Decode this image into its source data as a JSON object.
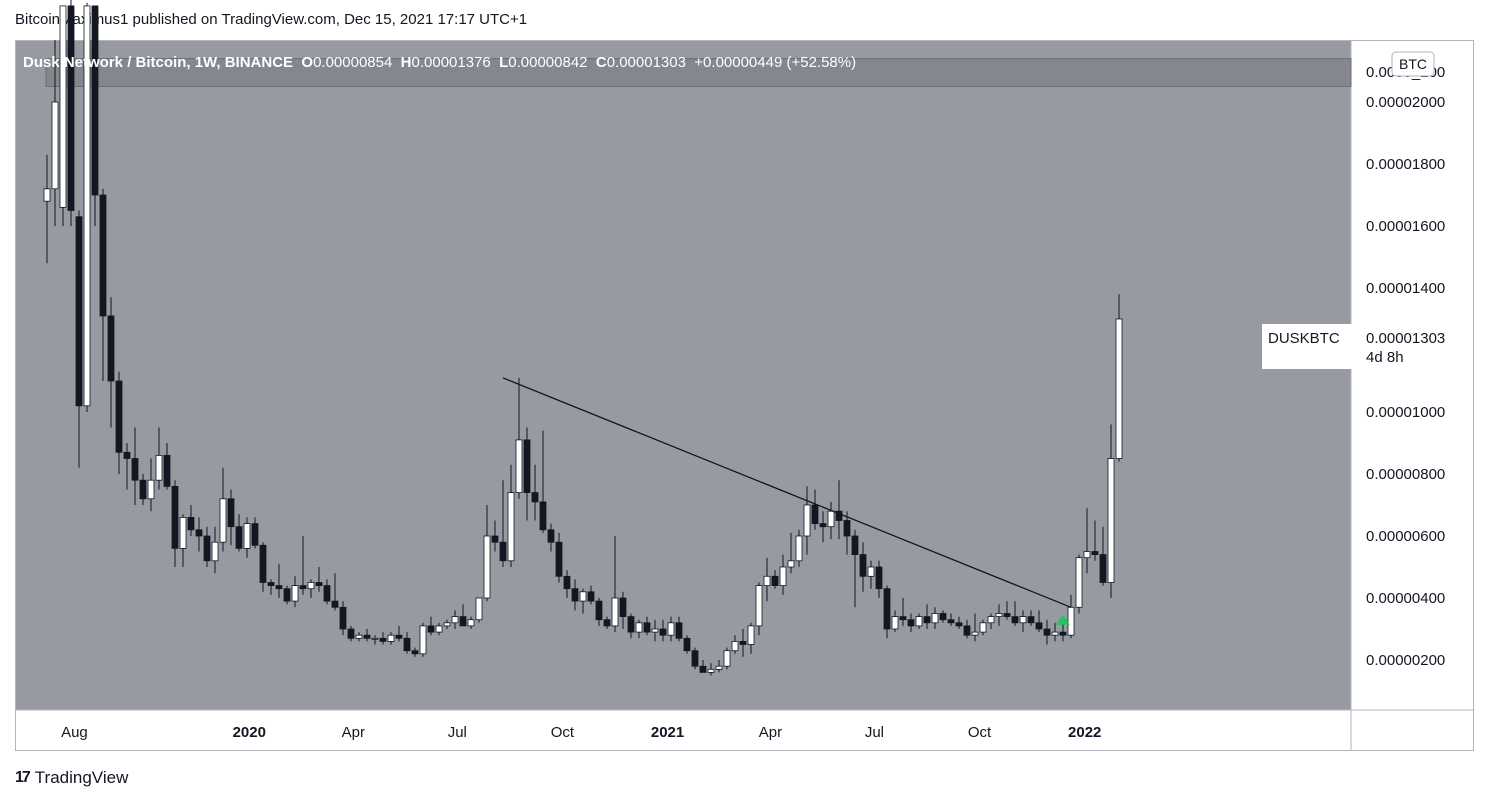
{
  "header": {
    "published": "BitcoinMaximus1 published on TradingView.com, Dec 15, 2021 17:17 UTC+1"
  },
  "legend": {
    "symbol": "Dusk Network / Bitcoin, 1W, BINANCE",
    "o_label": "O",
    "o": "0.00000854",
    "h_label": "H",
    "h": "0.00001376",
    "l_label": "L",
    "l": "0.00000842",
    "c_label": "C",
    "c": "0.00001303",
    "change": "+0.00000449 (+52.58%)"
  },
  "price_axis": {
    "currency": "BTC",
    "ticks": [
      "0.00002000",
      "0.00001800",
      "0.00001600",
      "0.00001400",
      "0.00001000",
      "0.00000800",
      "0.00000600",
      "0.00000400",
      "0.00000200"
    ],
    "top_partial": "0.0000_200",
    "label_symbol": "DUSKBTC",
    "label_price": "0.00001303",
    "label_countdown": "4d 8h"
  },
  "time_axis": {
    "ticks": [
      "Aug",
      "2020",
      "Apr",
      "Jul",
      "Oct",
      "2021",
      "Apr",
      "Jul",
      "Oct",
      "2022"
    ]
  },
  "footer": {
    "brand": "TradingView",
    "logo_mark": "17"
  },
  "colors": {
    "plot_bg": "#979aa1",
    "up": "#ffffff",
    "down": "#131722",
    "arrow": "#22c55e",
    "zone": "#7d8087"
  },
  "chart_data": {
    "type": "candlestick",
    "interval": "1W",
    "ylim": [
      1.1e-06,
      2.24e-05
    ],
    "resistance_zone": [
      2.05e-05,
      2.14e-05
    ],
    "trendline": {
      "from": [
        "2020-08-10",
        1.11e-05
      ],
      "to": [
        "2021-12-20",
        3.7e-06
      ]
    },
    "signal_arrow": {
      "date": "2021-12-13",
      "price": 3.3e-06,
      "direction": "up"
    },
    "candles_start": "2019-07-08",
    "candles": [
      [
        1.68e-05,
        1.83e-05,
        1.48e-05,
        1.72e-05
      ],
      [
        1.72e-05,
        2.2e-05,
        1.6e-05,
        2e-05
      ],
      [
        1.66e-05,
        2.3e-05,
        1.6e-05,
        2.31e-05
      ],
      [
        2.31e-05,
        2.45e-05,
        1.6e-05,
        1.65e-05
      ],
      [
        1.63e-05,
        1.65e-05,
        8.2e-06,
        1.02e-05
      ],
      [
        1.02e-05,
        2.32e-05,
        1e-05,
        2.31e-05
      ],
      [
        2.31e-05,
        2.31e-05,
        1.6e-05,
        1.7e-05
      ],
      [
        1.7e-05,
        1.72e-05,
        1.1e-05,
        1.31e-05
      ],
      [
        1.31e-05,
        1.37e-05,
        9.5e-06,
        1.1e-05
      ],
      [
        1.1e-05,
        1.13e-05,
        8e-06,
        8.7e-06
      ],
      [
        8.7e-06,
        9e-06,
        7.5e-06,
        8.5e-06
      ],
      [
        8.5e-06,
        9.5e-06,
        7e-06,
        7.8e-06
      ],
      [
        7.8e-06,
        8e-06,
        7e-06,
        7.2e-06
      ],
      [
        7.2e-06,
        8.5e-06,
        6.8e-06,
        7.8e-06
      ],
      [
        7.8e-06,
        9.5e-06,
        7.5e-06,
        8.6e-06
      ],
      [
        8.6e-06,
        9e-06,
        7.5e-06,
        7.6e-06
      ],
      [
        7.6e-06,
        7.8e-06,
        5e-06,
        5.6e-06
      ],
      [
        5.6e-06,
        6.7e-06,
        5e-06,
        6.6e-06
      ],
      [
        6.6e-06,
        7e-06,
        6e-06,
        6.2e-06
      ],
      [
        6.2e-06,
        6.6e-06,
        5.5e-06,
        6e-06
      ],
      [
        6e-06,
        6.3e-06,
        5e-06,
        5.2e-06
      ],
      [
        5.2e-06,
        6.3e-06,
        4.8e-06,
        5.8e-06
      ],
      [
        5.8e-06,
        8.2e-06,
        5.5e-06,
        7.2e-06
      ],
      [
        7.2e-06,
        7.5e-06,
        5.7e-06,
        6.3e-06
      ],
      [
        6.3e-06,
        6.7e-06,
        5.5e-06,
        5.6e-06
      ],
      [
        5.6e-06,
        6.6e-06,
        5.3e-06,
        6.4e-06
      ],
      [
        6.4e-06,
        6.6e-06,
        5.6e-06,
        5.7e-06
      ],
      [
        5.7e-06,
        5.8e-06,
        4.2e-06,
        4.5e-06
      ],
      [
        4.5e-06,
        4.6e-06,
        4.1e-06,
        4.4e-06
      ],
      [
        4.4e-06,
        5.1e-06,
        4e-06,
        4.3e-06
      ],
      [
        4.3e-06,
        4.4e-06,
        3.8e-06,
        3.9e-06
      ],
      [
        3.9e-06,
        4.7e-06,
        3.7e-06,
        4.4e-06
      ],
      [
        4.4e-06,
        6e-06,
        4.1e-06,
        4.3e-06
      ],
      [
        4.3e-06,
        4.6e-06,
        4e-06,
        4.5e-06
      ],
      [
        4.5e-06,
        5e-06,
        4.2e-06,
        4.4e-06
      ],
      [
        4.4e-06,
        4.6e-06,
        3.8e-06,
        3.9e-06
      ],
      [
        3.9e-06,
        4.8e-06,
        3.6e-06,
        3.7e-06
      ],
      [
        3.7e-06,
        3.9e-06,
        2.8e-06,
        3e-06
      ],
      [
        3e-06,
        3.1e-06,
        2.6e-06,
        2.7e-06
      ],
      [
        2.7e-06,
        2.9e-06,
        2.6e-06,
        2.8e-06
      ],
      [
        2.8e-06,
        3e-06,
        2.6e-06,
        2.7e-06
      ],
      [
        2.7e-06,
        2.8e-06,
        2.5e-06,
        2.7e-06
      ],
      [
        2.7e-06,
        2.9e-06,
        2.5e-06,
        2.6e-06
      ],
      [
        2.6e-06,
        2.9e-06,
        2.5e-06,
        2.8e-06
      ],
      [
        2.8e-06,
        3.1e-06,
        2.6e-06,
        2.7e-06
      ],
      [
        2.7e-06,
        2.9e-06,
        2.2e-06,
        2.3e-06
      ],
      [
        2.3e-06,
        2.4e-06,
        2.1e-06,
        2.2e-06
      ],
      [
        2.2e-06,
        3.2e-06,
        2.1e-06,
        3.1e-06
      ],
      [
        3.1e-06,
        3.4e-06,
        2.8e-06,
        2.9e-06
      ],
      [
        2.9e-06,
        3.2e-06,
        2.8e-06,
        3.1e-06
      ],
      [
        3.1e-06,
        3.3e-06,
        3e-06,
        3.2e-06
      ],
      [
        3.2e-06,
        3.6e-06,
        3e-06,
        3.4e-06
      ],
      [
        3.4e-06,
        3.8e-06,
        3.1e-06,
        3.1e-06
      ],
      [
        3.1e-06,
        3.4e-06,
        3e-06,
        3.3e-06
      ],
      [
        3.3e-06,
        4e-06,
        3.2e-06,
        4e-06
      ],
      [
        4e-06,
        7e-06,
        3.9e-06,
        6e-06
      ],
      [
        6e-06,
        6.5e-06,
        5.5e-06,
        5.8e-06
      ],
      [
        5.8e-06,
        7.8e-06,
        5e-06,
        5.2e-06
      ],
      [
        5.2e-06,
        8.3e-06,
        5e-06,
        7.4e-06
      ],
      [
        7.4e-06,
        1.11e-05,
        7.2e-06,
        9.1e-06
      ],
      [
        9.1e-06,
        9.5e-06,
        6.5e-06,
        7.4e-06
      ],
      [
        7.4e-06,
        8.3e-06,
        6.5e-06,
        7.1e-06
      ],
      [
        7.1e-06,
        9.4e-06,
        6.1e-06,
        6.2e-06
      ],
      [
        6.2e-06,
        6.4e-06,
        5.5e-06,
        5.8e-06
      ],
      [
        5.8e-06,
        6.1e-06,
        4.5e-06,
        4.7e-06
      ],
      [
        4.7e-06,
        4.9e-06,
        4e-06,
        4.3e-06
      ],
      [
        4.3e-06,
        4.6e-06,
        3.6e-06,
        3.9e-06
      ],
      [
        3.9e-06,
        4.3e-06,
        3.5e-06,
        4.2e-06
      ],
      [
        4.2e-06,
        4.4e-06,
        3.8e-06,
        3.9e-06
      ],
      [
        3.9e-06,
        4e-06,
        3.1e-06,
        3.3e-06
      ],
      [
        3.3e-06,
        3.4e-06,
        3e-06,
        3.1e-06
      ],
      [
        3.1e-06,
        6e-06,
        2.9e-06,
        4e-06
      ],
      [
        4e-06,
        4.2e-06,
        3e-06,
        3.4e-06
      ],
      [
        3.4e-06,
        3.5e-06,
        2.7e-06,
        2.9e-06
      ],
      [
        2.9e-06,
        3.3e-06,
        2.7e-06,
        3.2e-06
      ],
      [
        3.2e-06,
        3.4e-06,
        2.8e-06,
        2.9e-06
      ],
      [
        2.9e-06,
        3.3e-06,
        2.6e-06,
        3e-06
      ],
      [
        3e-06,
        3.3e-06,
        2.6e-06,
        2.8e-06
      ],
      [
        2.8e-06,
        3.4e-06,
        2.6e-06,
        3.2e-06
      ],
      [
        3.2e-06,
        3.4e-06,
        2.6e-06,
        2.7e-06
      ],
      [
        2.7e-06,
        2.8e-06,
        2.2e-06,
        2.3e-06
      ],
      [
        2.3e-06,
        2.4e-06,
        1.7e-06,
        1.8e-06
      ],
      [
        1.8e-06,
        2e-06,
        1.6e-06,
        1.6e-06
      ],
      [
        1.6e-06,
        1.9e-06,
        1.5e-06,
        1.7e-06
      ],
      [
        1.7e-06,
        2e-06,
        1.6e-06,
        1.8e-06
      ],
      [
        1.8e-06,
        2.4e-06,
        1.7e-06,
        2.3e-06
      ],
      [
        2.3e-06,
        2.8e-06,
        2.2e-06,
        2.6e-06
      ],
      [
        2.6e-06,
        3e-06,
        2.1e-06,
        2.5e-06
      ],
      [
        2.5e-06,
        3.2e-06,
        2.2e-06,
        3.1e-06
      ],
      [
        3.1e-06,
        4.5e-06,
        2.8e-06,
        4.4e-06
      ],
      [
        4.4e-06,
        5.3e-06,
        3.9e-06,
        4.7e-06
      ],
      [
        4.7e-06,
        4.9e-06,
        4.3e-06,
        4.4e-06
      ],
      [
        4.4e-06,
        5.4e-06,
        4.1e-06,
        5e-06
      ],
      [
        5e-06,
        6.1e-06,
        4.8e-06,
        5.2e-06
      ],
      [
        5.2e-06,
        6.2e-06,
        5e-06,
        6e-06
      ],
      [
        6e-06,
        7.6e-06,
        5.4e-06,
        7e-06
      ],
      [
        7e-06,
        7.5e-06,
        6.2e-06,
        6.4e-06
      ],
      [
        6.4e-06,
        6.8e-06,
        5.8e-06,
        6.3e-06
      ],
      [
        6.3e-06,
        7.1e-06,
        5.9e-06,
        6.8e-06
      ],
      [
        6.8e-06,
        7.8e-06,
        5.9e-06,
        6.5e-06
      ],
      [
        6.5e-06,
        6.8e-06,
        5.4e-06,
        6e-06
      ],
      [
        6e-06,
        6.2e-06,
        3.7e-06,
        5.4e-06
      ],
      [
        5.4e-06,
        5.8e-06,
        4.2e-06,
        4.7e-06
      ],
      [
        4.7e-06,
        5.2e-06,
        4.3e-06,
        5e-06
      ],
      [
        5e-06,
        5.2e-06,
        4e-06,
        4.3e-06
      ],
      [
        4.3e-06,
        4.4e-06,
        2.7e-06,
        3e-06
      ],
      [
        3e-06,
        3.6e-06,
        2.9e-06,
        3.4e-06
      ],
      [
        3.4e-06,
        4e-06,
        3.1e-06,
        3.3e-06
      ],
      [
        3.3e-06,
        3.5e-06,
        2.9e-06,
        3.1e-06
      ],
      [
        3.1e-06,
        3.5e-06,
        3e-06,
        3.4e-06
      ],
      [
        3.4e-06,
        3.8e-06,
        3e-06,
        3.2e-06
      ],
      [
        3.2e-06,
        3.7e-06,
        3e-06,
        3.5e-06
      ],
      [
        3.5e-06,
        3.6e-06,
        3.2e-06,
        3.3e-06
      ],
      [
        3.3e-06,
        3.5e-06,
        3.1e-06,
        3.2e-06
      ],
      [
        3.2e-06,
        3.4e-06,
        3e-06,
        3.1e-06
      ],
      [
        3.1e-06,
        3.3e-06,
        2.7e-06,
        2.8e-06
      ],
      [
        2.8e-06,
        3.5e-06,
        2.6e-06,
        2.9e-06
      ],
      [
        2.9e-06,
        3.3e-06,
        2.8e-06,
        3.2e-06
      ],
      [
        3.2e-06,
        3.5e-06,
        3e-06,
        3.4e-06
      ],
      [
        3.4e-06,
        3.8e-06,
        3.1e-06,
        3.5e-06
      ],
      [
        3.5e-06,
        3.9e-06,
        3.3e-06,
        3.4e-06
      ],
      [
        3.4e-06,
        3.9e-06,
        3.1e-06,
        3.2e-06
      ],
      [
        3.2e-06,
        3.6e-06,
        2.9e-06,
        3.4e-06
      ],
      [
        3.4e-06,
        3.6e-06,
        3.1e-06,
        3.2e-06
      ],
      [
        3.2e-06,
        3.6e-06,
        2.9e-06,
        3e-06
      ],
      [
        3e-06,
        3.3e-06,
        2.5e-06,
        2.8e-06
      ],
      [
        2.8e-06,
        3.2e-06,
        2.6e-06,
        2.9e-06
      ],
      [
        2.9e-06,
        3.3e-06,
        2.6e-06,
        2.8e-06
      ],
      [
        2.8e-06,
        4.1e-06,
        2.7e-06,
        3.7e-06
      ],
      [
        3.7e-06,
        5.4e-06,
        3.5e-06,
        5.3e-06
      ],
      [
        5.3e-06,
        6.9e-06,
        4.8e-06,
        5.5e-06
      ],
      [
        5.5e-06,
        6.5e-06,
        5.2e-06,
        5.4e-06
      ],
      [
        5.4e-06,
        6.3e-06,
        4.4e-06,
        4.5e-06
      ],
      [
        4.5e-06,
        9.6e-06,
        4e-06,
        8.5e-06
      ],
      [
        8.5e-06,
        1.38e-05,
        8.4e-06,
        1.3e-05
      ]
    ]
  }
}
